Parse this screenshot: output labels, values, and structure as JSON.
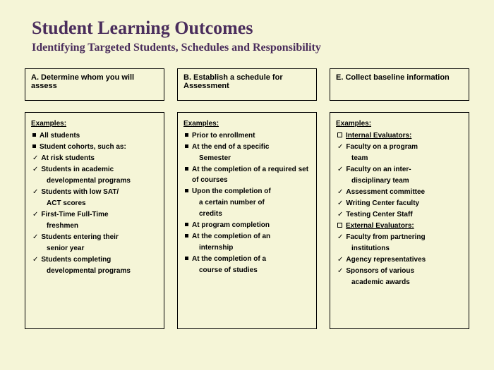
{
  "title": "Student Learning Outcomes",
  "subtitle": "Identifying Targeted Students, Schedules and Responsibility",
  "columns": [
    {
      "header": "A. Determine whom you will assess",
      "examples_label": "Examples:",
      "items": [
        {
          "bullet": "square",
          "text": "All students",
          "bold": true
        },
        {
          "bullet": "square",
          "text": "Student cohorts, such as:",
          "bold": true
        },
        {
          "bullet": "check",
          "text": "At risk students",
          "bold": true
        },
        {
          "bullet": "check",
          "text": "Students in academic",
          "bold": true
        },
        {
          "bullet": "none",
          "text": "developmental programs",
          "bold": true,
          "indent": true
        },
        {
          "bullet": "check",
          "text": "Students with low SAT/",
          "bold": true
        },
        {
          "bullet": "none",
          "text": "ACT scores",
          "bold": true,
          "indent": true
        },
        {
          "bullet": "check",
          "text": "First-Time Full-Time",
          "bold": true
        },
        {
          "bullet": "none",
          "text": "freshmen",
          "bold": true,
          "indent": true
        },
        {
          "bullet": "check",
          "text": "Students entering their",
          "bold": true
        },
        {
          "bullet": "none",
          "text": "senior year",
          "bold": true,
          "indent": true
        },
        {
          "bullet": "check",
          "text": "Students completing",
          "bold": true
        },
        {
          "bullet": "none",
          "text": "developmental programs",
          "bold": true,
          "indent": true
        }
      ]
    },
    {
      "header": "B. Establish a schedule for Assessment",
      "examples_label": "Examples:",
      "items": [
        {
          "bullet": "square",
          "text": "Prior to enrollment",
          "bold": true
        },
        {
          "bullet": "square",
          "text": "At the end of a specific",
          "bold": true
        },
        {
          "bullet": "none",
          "text": "Semester",
          "bold": true,
          "indent": true
        },
        {
          "bullet": "square",
          "text": "At the completion of a required set of courses",
          "bold": true
        },
        {
          "bullet": "square",
          "text": "Upon the completion of",
          "bold": true
        },
        {
          "bullet": "none",
          "text": "a certain number of",
          "bold": true,
          "indent": true
        },
        {
          "bullet": "none",
          "text": "credits",
          "bold": true,
          "indent": true
        },
        {
          "bullet": "square",
          "text": "At program completion",
          "bold": true
        },
        {
          "bullet": "square",
          "text": "At the completion of an",
          "bold": true
        },
        {
          "bullet": "none",
          "text": "internship",
          "bold": true,
          "indent": true
        },
        {
          "bullet": "square",
          "text": "At the completion of a",
          "bold": true
        },
        {
          "bullet": "none",
          "text": "course of studies",
          "bold": true,
          "indent": true
        }
      ]
    },
    {
      "header": "E. Collect baseline information",
      "examples_label": "Examples:",
      "items": [
        {
          "bullet": "outline-square",
          "text": "Internal Evaluators:",
          "bold": true,
          "underline": true
        },
        {
          "bullet": "check",
          "text": "Faculty on a program",
          "bold": true
        },
        {
          "bullet": "none",
          "text": "team",
          "bold": true,
          "indent": true
        },
        {
          "bullet": "check",
          "text": "Faculty on an inter-",
          "bold": true
        },
        {
          "bullet": "none",
          "text": "disciplinary team",
          "bold": true,
          "indent": true
        },
        {
          "bullet": "check",
          "text": "Assessment committee",
          "bold": true
        },
        {
          "bullet": "check",
          "text": "Writing Center faculty",
          "bold": true
        },
        {
          "bullet": "check",
          "text": "Testing Center Staff",
          "bold": true
        },
        {
          "bullet": "outline-square",
          "text": "External Evaluators:",
          "bold": true,
          "underline": true
        },
        {
          "bullet": "check",
          "text": "Faculty from partnering",
          "bold": true
        },
        {
          "bullet": "none",
          "text": "institutions",
          "bold": true,
          "indent": true
        },
        {
          "bullet": "check",
          "text": "Agency representatives",
          "bold": true
        },
        {
          "bullet": "check",
          "text": "Sponsors of various",
          "bold": true
        },
        {
          "bullet": "none",
          "text": "academic awards",
          "bold": true,
          "indent": true
        }
      ]
    }
  ]
}
